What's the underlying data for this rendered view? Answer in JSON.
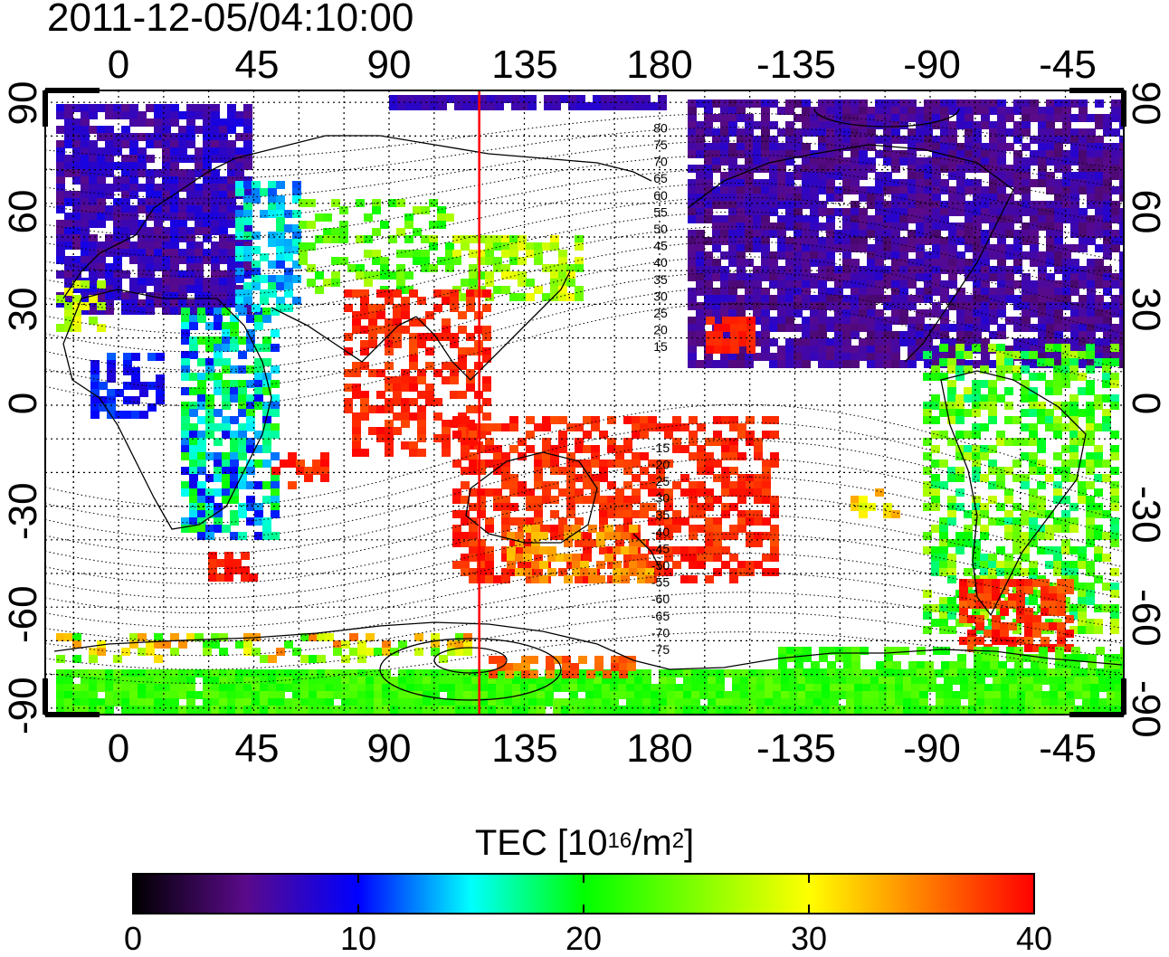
{
  "title": "2011-12-05/04:10:00",
  "map": {
    "longitude_ticks_top": [
      "0",
      "45",
      "90",
      "135",
      "180",
      "-135",
      "-90",
      "-45"
    ],
    "longitude_ticks_bottom": [
      "0",
      "45",
      "90",
      "135",
      "180",
      "-135",
      "-90",
      "-45"
    ],
    "latitude_ticks_left": [
      "90",
      "60",
      "30",
      "0",
      "-30",
      "-60",
      "-90"
    ],
    "latitude_ticks_right": [
      "90",
      "60",
      "30",
      "0",
      "-30",
      "-60",
      "-90"
    ],
    "meridian_line_color": "#ff0000",
    "meridian_longitude": 120,
    "contour_labels": [
      "80",
      "75",
      "70",
      "65",
      "60",
      "55",
      "50",
      "45",
      "40",
      "35",
      "30",
      "25",
      "20",
      "15",
      "-15",
      "-20",
      "-25",
      "-30",
      "-35",
      "-40",
      "-45",
      "-50",
      "-55",
      "-60",
      "-65",
      "-70",
      "-75"
    ]
  },
  "colorbar": {
    "title_main": "TEC  [10",
    "title_exp": "16",
    "title_mid": "/m",
    "title_exp2": "2",
    "title_end": "]",
    "ticks": [
      "0",
      "10",
      "20",
      "30",
      "40"
    ],
    "min": 0,
    "max": 40,
    "colors": [
      "#000000",
      "#5a0a8a",
      "#0000ff",
      "#00ffff",
      "#00ff00",
      "#80ff00",
      "#ffff00",
      "#ff8000",
      "#ff0000"
    ]
  }
}
